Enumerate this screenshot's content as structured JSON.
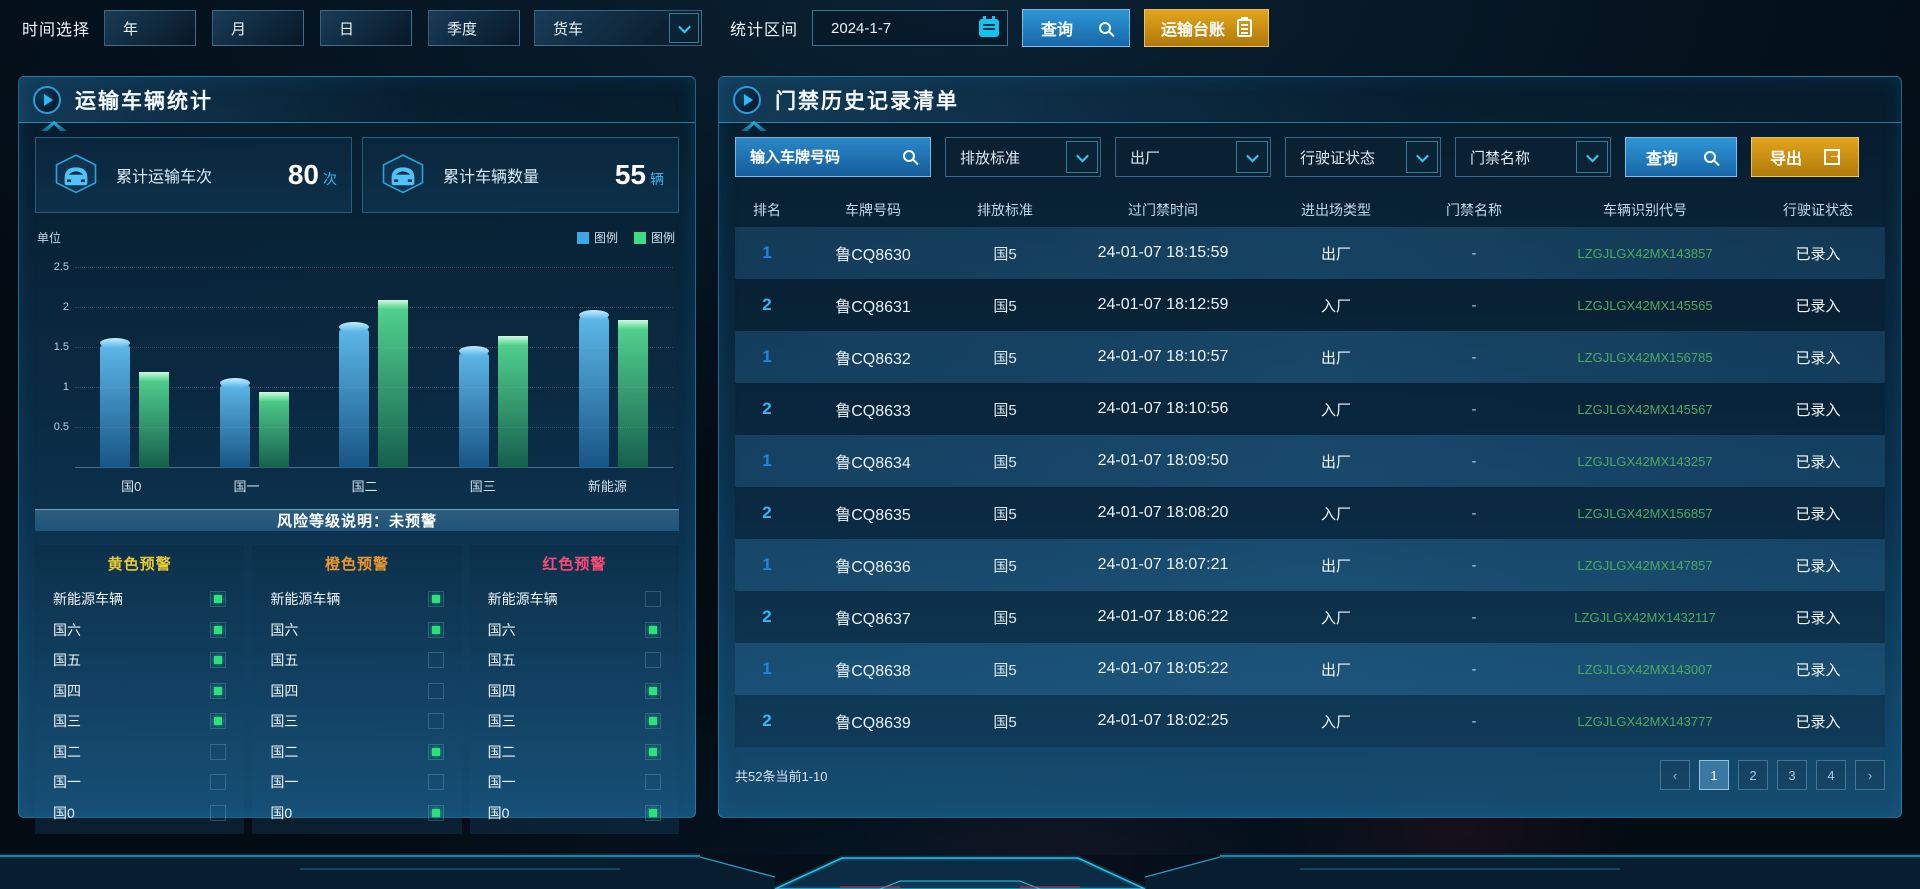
{
  "topbar": {
    "time_label": "时间选择",
    "period_buttons": [
      "年",
      "月",
      "日",
      "季度"
    ],
    "vehicle_type_value": "货车",
    "range_label": "统计区间",
    "date_value": "2024-1-7",
    "query_label": "查询",
    "ledger_label": "运输台账"
  },
  "left_panel": {
    "title": "运输车辆统计",
    "stats": [
      {
        "label": "累计运输车次",
        "value": "80",
        "unit": "次"
      },
      {
        "label": "累计车辆数量",
        "value": "55",
        "unit": "辆"
      }
    ],
    "risk_banner": "风险等级说明：未预警",
    "warning_columns": [
      {
        "title": "黄色预警",
        "color": "#e6c832",
        "items": [
          {
            "label": "新能源车辆",
            "checked": true
          },
          {
            "label": "国六",
            "checked": true
          },
          {
            "label": "国五",
            "checked": true
          },
          {
            "label": "国四",
            "checked": true
          },
          {
            "label": "国三",
            "checked": true
          },
          {
            "label": "国二",
            "checked": false
          },
          {
            "label": "国一",
            "checked": false
          },
          {
            "label": "国0",
            "checked": false
          }
        ]
      },
      {
        "title": "橙色预警",
        "color": "#e8962e",
        "items": [
          {
            "label": "新能源车辆",
            "checked": true
          },
          {
            "label": "国六",
            "checked": true
          },
          {
            "label": "国五",
            "checked": false
          },
          {
            "label": "国四",
            "checked": false
          },
          {
            "label": "国三",
            "checked": false
          },
          {
            "label": "国二",
            "checked": true
          },
          {
            "label": "国一",
            "checked": false
          },
          {
            "label": "国0",
            "checked": true
          }
        ]
      },
      {
        "title": "红色预警",
        "color": "#fa4a78",
        "items": [
          {
            "label": "新能源车辆",
            "checked": false
          },
          {
            "label": "国六",
            "checked": true
          },
          {
            "label": "国五",
            "checked": false
          },
          {
            "label": "国四",
            "checked": true
          },
          {
            "label": "国三",
            "checked": true
          },
          {
            "label": "国二",
            "checked": true
          },
          {
            "label": "国一",
            "checked": false
          },
          {
            "label": "国0",
            "checked": true
          }
        ]
      }
    ]
  },
  "chart_data": {
    "type": "bar",
    "title": "运输车辆统计柱状图",
    "unit_label": "单位",
    "categories": [
      "国0",
      "国一",
      "国二",
      "国三",
      "新能源"
    ],
    "series": [
      {
        "name": "图例",
        "color": "#3aa7e8",
        "values": [
          1.6,
          1.1,
          1.8,
          1.5,
          1.95
        ]
      },
      {
        "name": "图例",
        "color": "#3ddc84",
        "values": [
          1.2,
          0.95,
          2.1,
          1.65,
          1.85
        ]
      }
    ],
    "ylim": [
      0,
      2.5
    ],
    "yticks": [
      0.5,
      1,
      1.5,
      2,
      2.5
    ],
    "grid": true,
    "legend_position": "top-right"
  },
  "right_panel": {
    "title": "门禁历史记录清单",
    "filters": {
      "plate_placeholder": "输入车牌号码",
      "selects": [
        "排放标准",
        "出厂",
        "行驶证状态",
        "门禁名称"
      ],
      "query_label": "查询",
      "export_label": "导出"
    },
    "table": {
      "headers": [
        "排名",
        "车牌号码",
        "排放标准",
        "过门禁时间",
        "进出场类型",
        "门禁名称",
        "车辆识别代号",
        "行驶证状态"
      ],
      "rows": [
        [
          "1",
          "鲁CQ8630",
          "国5",
          "24-01-07 18:15:59",
          "出厂",
          "-",
          "LZGJLGX42MX143857",
          "已录入"
        ],
        [
          "2",
          "鲁CQ8631",
          "国5",
          "24-01-07 18:12:59",
          "入厂",
          "-",
          "LZGJLGX42MX145565",
          "已录入"
        ],
        [
          "1",
          "鲁CQ8632",
          "国5",
          "24-01-07 18:10:57",
          "出厂",
          "-",
          "LZGJLGX42MX156785",
          "已录入"
        ],
        [
          "2",
          "鲁CQ8633",
          "国5",
          "24-01-07 18:10:56",
          "入厂",
          "-",
          "LZGJLGX42MX145567",
          "已录入"
        ],
        [
          "1",
          "鲁CQ8634",
          "国5",
          "24-01-07 18:09:50",
          "出厂",
          "-",
          "LZGJLGX42MX143257",
          "已录入"
        ],
        [
          "2",
          "鲁CQ8635",
          "国5",
          "24-01-07 18:08:20",
          "入厂",
          "-",
          "LZGJLGX42MX156857",
          "已录入"
        ],
        [
          "1",
          "鲁CQ8636",
          "国5",
          "24-01-07 18:07:21",
          "出厂",
          "-",
          "LZGJLGX42MX147857",
          "已录入"
        ],
        [
          "2",
          "鲁CQ8637",
          "国5",
          "24-01-07 18:06:22",
          "入厂",
          "-",
          "LZGJLGX42MX1432117",
          "已录入"
        ],
        [
          "1",
          "鲁CQ8638",
          "国5",
          "24-01-07 18:05:22",
          "出厂",
          "-",
          "LZGJLGX42MX143007",
          "已录入"
        ],
        [
          "2",
          "鲁CQ8639",
          "国5",
          "24-01-07 18:02:25",
          "入厂",
          "-",
          "LZGJLGX42MX143777",
          "已录入"
        ]
      ]
    },
    "footer": {
      "total_text": "共52条当前1-10",
      "prev_label": "‹",
      "next_label": "›",
      "pages": [
        "1",
        "2",
        "3",
        "4"
      ],
      "active_page": "1"
    }
  },
  "colors": {
    "accent_cyan": "#2fb9f2",
    "button_blue": "#1f7fc0",
    "button_orange": "#d19114",
    "vin_green": "#4aaa60",
    "checked_green": "#2ee07a",
    "rank1_blue": "#1f86e0",
    "rank2_cyan": "#3db4f2"
  }
}
